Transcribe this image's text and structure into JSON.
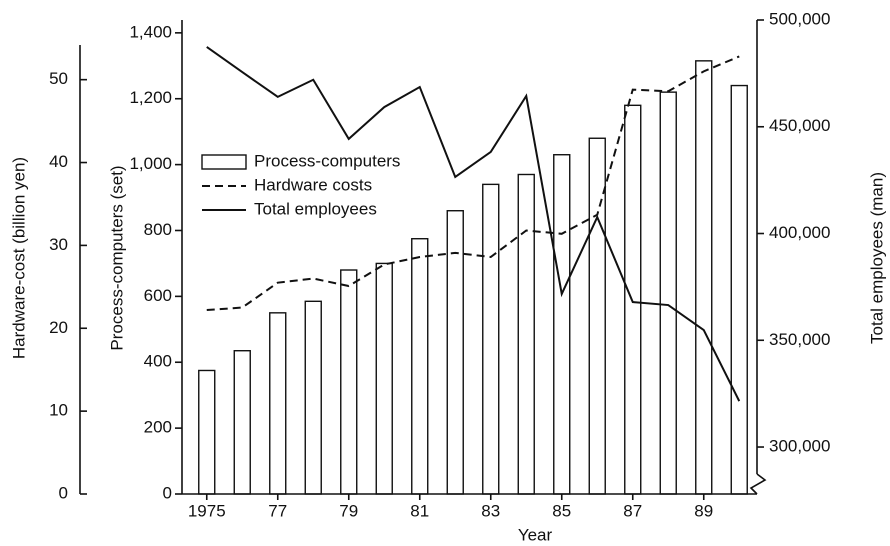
{
  "chart_data": {
    "type": "bar_line",
    "xlabel": "Year",
    "ylabel": "Process-computers (set)",
    "y_left_label": "Hardware-cost (billion yen)",
    "y2label": "Total employees (man)",
    "x": [
      1975,
      1976,
      1977,
      1978,
      1979,
      1980,
      1981,
      1982,
      1983,
      1984,
      1985,
      1986,
      1987,
      1988,
      1989,
      1990
    ],
    "xlim": [
      1974.5,
      1990.5
    ],
    "xticks": [
      {
        "value": 1975,
        "label": "1975"
      },
      {
        "value": 1977,
        "label": "77"
      },
      {
        "value": 1979,
        "label": "79"
      },
      {
        "value": 1981,
        "label": "81"
      },
      {
        "value": 1983,
        "label": "83"
      },
      {
        "value": 1985,
        "label": "85"
      },
      {
        "value": 1987,
        "label": "87"
      },
      {
        "value": 1989,
        "label": "89"
      }
    ],
    "ylim": [
      0,
      1439
    ],
    "yticks": [
      0,
      200,
      400,
      600,
      800,
      {
        "value": 1000,
        "label": "1,000"
      },
      {
        "value": 1200,
        "label": "1,200"
      },
      {
        "value": 1400,
        "label": "1,400"
      }
    ],
    "y3lim": [
      0,
      57.2
    ],
    "y3ticks": [
      0,
      10,
      20,
      30,
      40,
      50
    ],
    "y2lim": [
      278000,
      500000
    ],
    "y2ticks": [
      {
        "value": 300000,
        "label": "300,000"
      },
      {
        "value": 350000,
        "label": "350,000"
      },
      {
        "value": 400000,
        "label": "400,000"
      },
      {
        "value": 450000,
        "label": "450,000"
      },
      {
        "value": 500000,
        "label": "500,000"
      }
    ],
    "series": [
      {
        "name": "Process-computers",
        "kind": "bar",
        "color": "#ffffff",
        "values": [
          375,
          435,
          550,
          585,
          680,
          700,
          775,
          860,
          940,
          970,
          1030,
          1080,
          1180,
          1220,
          1315,
          1240
        ]
      },
      {
        "name": "Hardware costs",
        "kind": "dashed",
        "axis": "y3",
        "color": "#111111",
        "values": [
          22.2,
          22.5,
          25.5,
          26,
          25.1,
          27.7,
          28.6,
          29.1,
          28.6,
          31.8,
          31.4,
          33.7,
          48.8,
          48.6,
          51,
          52.8
        ]
      },
      {
        "name": "Total employees",
        "kind": "solid",
        "axis": "y2",
        "color": "#111111",
        "values": [
          487400,
          475600,
          464000,
          472000,
          444300,
          459200,
          468600,
          426500,
          438200,
          464400,
          371700,
          407700,
          367900,
          366500,
          354800,
          321500
        ]
      }
    ]
  }
}
